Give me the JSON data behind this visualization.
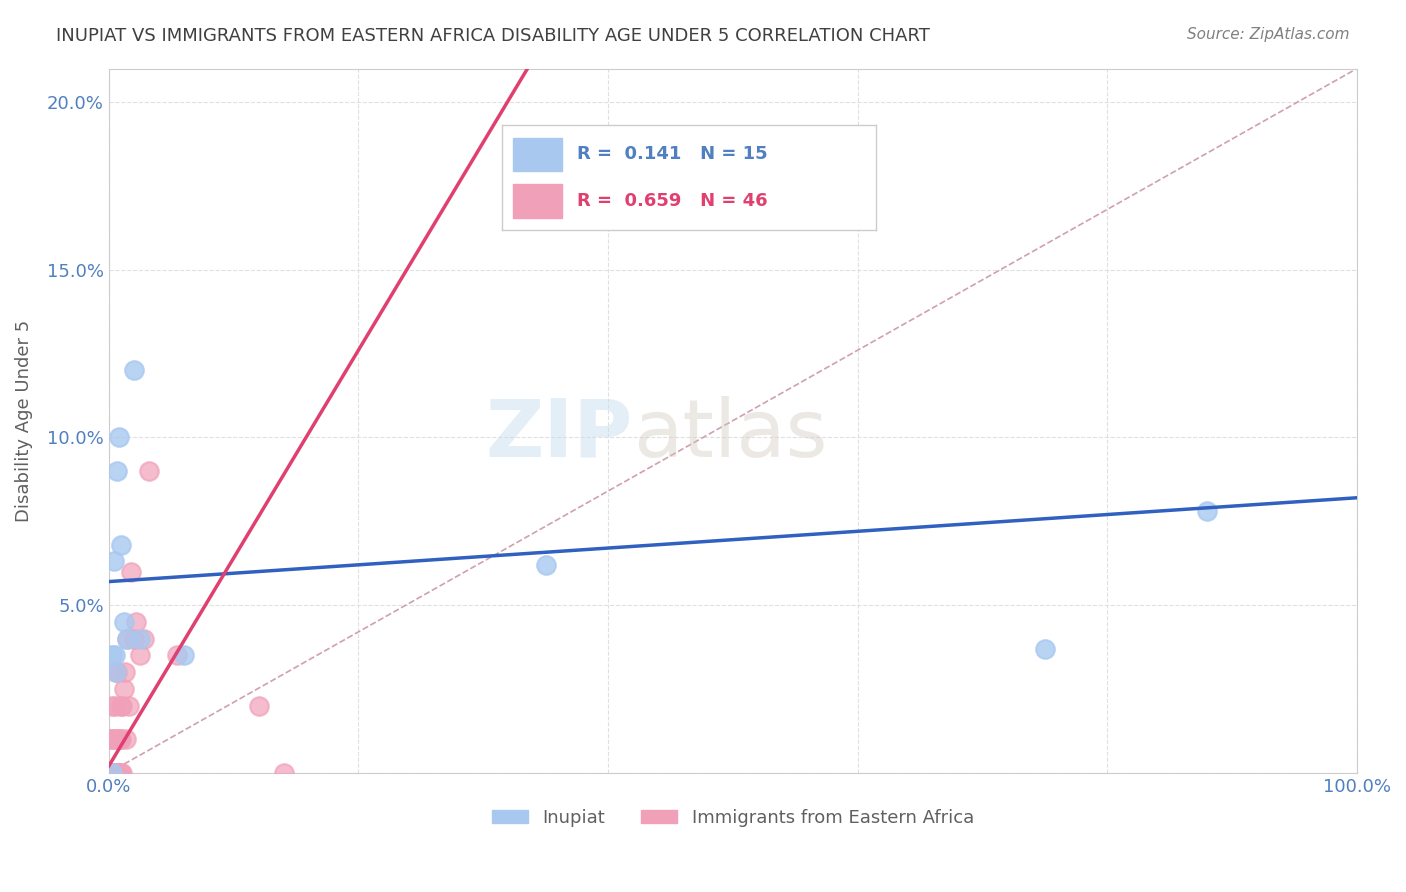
{
  "title": "INUPIAT VS IMMIGRANTS FROM EASTERN AFRICA DISABILITY AGE UNDER 5 CORRELATION CHART",
  "source": "Source: ZipAtlas.com",
  "ylabel": "Disability Age Under 5",
  "xlim": [
    0,
    1.0
  ],
  "ylim": [
    0,
    0.21
  ],
  "xticks": [
    0.0,
    0.2,
    0.4,
    0.6,
    0.8,
    1.0
  ],
  "xticklabels": [
    "0.0%",
    "",
    "",
    "",
    "",
    "100.0%"
  ],
  "yticks": [
    0.0,
    0.05,
    0.1,
    0.15,
    0.2
  ],
  "yticklabels": [
    "",
    "5.0%",
    "10.0%",
    "15.0%",
    "20.0%"
  ],
  "inupiat_color": "#a8c8f0",
  "immigrant_color": "#f0a0b8",
  "inupiat_line_color": "#3060c0",
  "immigrant_line_color": "#e04070",
  "diagonal_color": "#d0a0b0",
  "inupiat_points_x": [
    0.003,
    0.003,
    0.004,
    0.005,
    0.006,
    0.007,
    0.008,
    0.01,
    0.012,
    0.015,
    0.02,
    0.025,
    0.06,
    0.35,
    0.75,
    0.88
  ],
  "inupiat_points_y": [
    0.0,
    0.035,
    0.063,
    0.035,
    0.03,
    0.09,
    0.1,
    0.068,
    0.045,
    0.04,
    0.12,
    0.04,
    0.035,
    0.062,
    0.037,
    0.078
  ],
  "immigrant_points_x": [
    0.001,
    0.001,
    0.001,
    0.002,
    0.002,
    0.002,
    0.002,
    0.003,
    0.003,
    0.003,
    0.003,
    0.004,
    0.004,
    0.004,
    0.005,
    0.005,
    0.005,
    0.006,
    0.006,
    0.006,
    0.007,
    0.007,
    0.007,
    0.008,
    0.008,
    0.009,
    0.009,
    0.01,
    0.01,
    0.01,
    0.011,
    0.011,
    0.012,
    0.013,
    0.014,
    0.015,
    0.016,
    0.018,
    0.02,
    0.022,
    0.025,
    0.028,
    0.032,
    0.055,
    0.12,
    0.14
  ],
  "immigrant_points_y": [
    0.0,
    0.0,
    0.0,
    0.0,
    0.0,
    0.0,
    0.01,
    0.0,
    0.0,
    0.01,
    0.02,
    0.0,
    0.0,
    0.01,
    0.0,
    0.0,
    0.02,
    0.0,
    0.0,
    0.03,
    0.0,
    0.01,
    0.03,
    0.0,
    0.01,
    0.0,
    0.01,
    0.0,
    0.01,
    0.02,
    0.0,
    0.02,
    0.025,
    0.03,
    0.01,
    0.04,
    0.02,
    0.06,
    0.04,
    0.045,
    0.035,
    0.04,
    0.09,
    0.035,
    0.02,
    0.0
  ],
  "inupiat_slope": 0.025,
  "inupiat_intercept": 0.057,
  "immigrant_slope": 0.62,
  "immigrant_intercept": 0.002,
  "watermark_zip": "ZIP",
  "watermark_atlas": "atlas",
  "background_color": "#ffffff",
  "grid_color": "#e0e0e0"
}
